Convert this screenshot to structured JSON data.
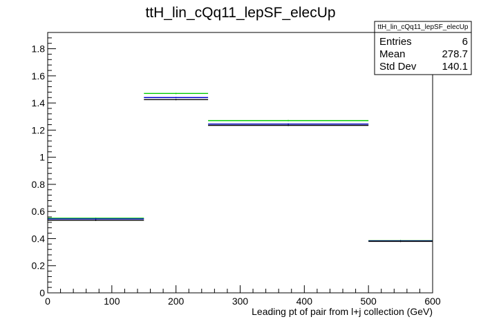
{
  "chart_data": {
    "type": "histogram",
    "title": "ttH_lin_cQq11_lepSF_elecUp",
    "xlabel": "Leading pt of pair from l+j collection (GeV)",
    "ylabel": "",
    "xlim": [
      0,
      600
    ],
    "ylim": [
      0,
      1.92
    ],
    "x_ticks": [
      0,
      100,
      200,
      300,
      400,
      500,
      600
    ],
    "y_ticks": [
      0,
      0.2,
      0.4,
      0.6,
      0.8,
      1,
      1.2,
      1.4,
      1.6,
      1.8
    ],
    "y_tick_labels": [
      "0",
      "0.2",
      "0.4",
      "0.6",
      "0.8",
      "1",
      "1.2",
      "1.4",
      "1.6",
      "1.8"
    ],
    "grid": false,
    "bins": [
      {
        "xlow": 0,
        "xhigh": 150
      },
      {
        "xlow": 150,
        "xhigh": 250
      },
      {
        "xlow": 250,
        "xhigh": 500
      },
      {
        "xlow": 500,
        "xhigh": 600
      }
    ],
    "series": [
      {
        "color": "#00cc00",
        "values": [
          0.55,
          1.47,
          1.27,
          0.385
        ]
      },
      {
        "color": "#0000cc",
        "values": [
          0.545,
          1.44,
          1.245,
          0.383
        ]
      },
      {
        "color": "#000000",
        "values": [
          0.535,
          1.425,
          1.235,
          0.38
        ]
      }
    ],
    "stats_box": {
      "name": "ttH_lin_cQq11_lepSF_elecUp",
      "rows": [
        {
          "label": "Entries",
          "value": "6"
        },
        {
          "label": "Mean",
          "value": "278.7"
        },
        {
          "label": "Std Dev",
          "value": "140.1"
        }
      ]
    }
  }
}
